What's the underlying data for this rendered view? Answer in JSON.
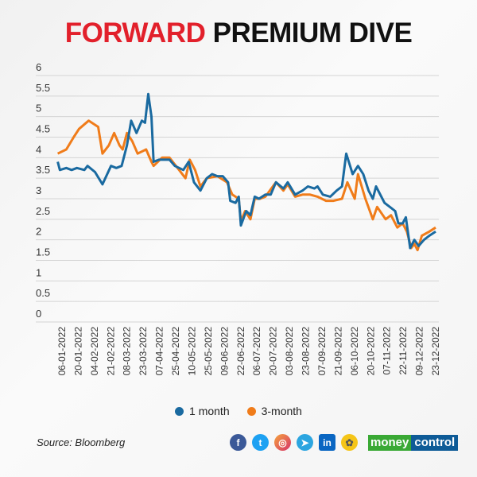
{
  "title": {
    "part1": "FORWARD",
    "part2": "PREMIUM DIVE"
  },
  "legend": [
    "1 month",
    "3-month"
  ],
  "source": "Source: Bloomberg",
  "logo": {
    "part1": "money",
    "part2": "control"
  },
  "social_icons": [
    "facebook-icon",
    "twitter-icon",
    "instagram-icon",
    "telegram-icon",
    "linkedin-icon",
    "koo-icon"
  ],
  "colors": {
    "title_red": "#e2202b",
    "one_month": "#1a6aa0",
    "three_month": "#f07c1a"
  },
  "chart_data": {
    "type": "line",
    "title": "FORWARD PREMIUM DIVE",
    "xlabel": "",
    "ylabel": "",
    "ylim": [
      0,
      6
    ],
    "yticks": [
      "0",
      "0.5",
      "1",
      "1.5",
      "2",
      "2.5",
      "3",
      "3.5",
      "4",
      "4.5",
      "5",
      "5.5",
      "6"
    ],
    "x_unit": "day of year 2022",
    "xticks": [
      "06-01-2022",
      "20-01-2022",
      "04-02-2022",
      "21-02-2022",
      "08-03-2022",
      "23-03-2022",
      "07-04-2022",
      "25-04-2022",
      "10-05-2022",
      "25-05-2022",
      "09-06-2022",
      "22-06-2022",
      "06-07-2022",
      "20-07-2022",
      "03-08-2022",
      "23-08-2022",
      "07-09-2022",
      "21-09-2022",
      "06-10-2022",
      "20-10-2022",
      "07-11-2022",
      "22-11-2022",
      "09-12-2022",
      "23-12-2022"
    ],
    "xlim": [
      6,
      357
    ],
    "grid": true,
    "legend_position": "bottom",
    "series": [
      {
        "name": "1 month",
        "points": [
          [
            2,
            3.9
          ],
          [
            4,
            3.7
          ],
          [
            10,
            3.75
          ],
          [
            15,
            3.7
          ],
          [
            20,
            3.75
          ],
          [
            27,
            3.7
          ],
          [
            30,
            3.8
          ],
          [
            37,
            3.65
          ],
          [
            44,
            3.35
          ],
          [
            52,
            3.8
          ],
          [
            57,
            3.75
          ],
          [
            62,
            3.8
          ],
          [
            67,
            4.3
          ],
          [
            71,
            4.9
          ],
          [
            76,
            4.6
          ],
          [
            81,
            4.9
          ],
          [
            84,
            4.85
          ],
          [
            87,
            5.55
          ],
          [
            90,
            5.0
          ],
          [
            92,
            3.9
          ],
          [
            97,
            3.95
          ],
          [
            102,
            3.95
          ],
          [
            107,
            3.95
          ],
          [
            112,
            3.8
          ],
          [
            120,
            3.7
          ],
          [
            125,
            3.9
          ],
          [
            130,
            3.4
          ],
          [
            136,
            3.2
          ],
          [
            142,
            3.5
          ],
          [
            147,
            3.6
          ],
          [
            152,
            3.55
          ],
          [
            157,
            3.55
          ],
          [
            162,
            3.4
          ],
          [
            164,
            2.95
          ],
          [
            169,
            2.9
          ],
          [
            172,
            3.05
          ],
          [
            174,
            2.35
          ],
          [
            179,
            2.7
          ],
          [
            183,
            2.6
          ],
          [
            187,
            3.05
          ],
          [
            191,
            3.0
          ],
          [
            197,
            3.1
          ],
          [
            202,
            3.1
          ],
          [
            207,
            3.4
          ],
          [
            214,
            3.25
          ],
          [
            218,
            3.4
          ],
          [
            225,
            3.1
          ],
          [
            232,
            3.2
          ],
          [
            237,
            3.3
          ],
          [
            243,
            3.25
          ],
          [
            246,
            3.3
          ],
          [
            251,
            3.1
          ],
          [
            258,
            3.05
          ],
          [
            264,
            3.2
          ],
          [
            269,
            3.3
          ],
          [
            273,
            4.1
          ],
          [
            279,
            3.6
          ],
          [
            284,
            3.8
          ],
          [
            289,
            3.6
          ],
          [
            294,
            3.2
          ],
          [
            298,
            3.0
          ],
          [
            301,
            3.3
          ],
          [
            309,
            2.9
          ],
          [
            314,
            2.8
          ],
          [
            319,
            2.7
          ],
          [
            322,
            2.4
          ],
          [
            326,
            2.4
          ],
          [
            329,
            2.55
          ],
          [
            333,
            1.8
          ],
          [
            337,
            2.0
          ],
          [
            341,
            1.85
          ],
          [
            346,
            2.0
          ],
          [
            351,
            2.1
          ],
          [
            357,
            2.2
          ]
        ]
      },
      {
        "name": "3-month",
        "points": [
          [
            2,
            4.1
          ],
          [
            10,
            4.2
          ],
          [
            17,
            4.5
          ],
          [
            22,
            4.7
          ],
          [
            31,
            4.9
          ],
          [
            40,
            4.75
          ],
          [
            44,
            4.1
          ],
          [
            50,
            4.3
          ],
          [
            55,
            4.6
          ],
          [
            60,
            4.3
          ],
          [
            63,
            4.2
          ],
          [
            67,
            4.6
          ],
          [
            72,
            4.4
          ],
          [
            77,
            4.1
          ],
          [
            85,
            4.2
          ],
          [
            90,
            3.9
          ],
          [
            92,
            3.8
          ],
          [
            100,
            4.0
          ],
          [
            107,
            4.0
          ],
          [
            116,
            3.7
          ],
          [
            122,
            3.5
          ],
          [
            126,
            3.95
          ],
          [
            131,
            3.7
          ],
          [
            136,
            3.3
          ],
          [
            142,
            3.5
          ],
          [
            152,
            3.55
          ],
          [
            161,
            3.4
          ],
          [
            166,
            3.1
          ],
          [
            172,
            3.0
          ],
          [
            174,
            2.45
          ],
          [
            178,
            2.7
          ],
          [
            183,
            2.5
          ],
          [
            187,
            3.0
          ],
          [
            192,
            3.0
          ],
          [
            197,
            3.05
          ],
          [
            207,
            3.4
          ],
          [
            214,
            3.2
          ],
          [
            218,
            3.35
          ],
          [
            225,
            3.05
          ],
          [
            232,
            3.1
          ],
          [
            239,
            3.1
          ],
          [
            246,
            3.05
          ],
          [
            254,
            2.95
          ],
          [
            261,
            2.95
          ],
          [
            269,
            3.0
          ],
          [
            274,
            3.4
          ],
          [
            281,
            3.0
          ],
          [
            284,
            3.6
          ],
          [
            291,
            3.0
          ],
          [
            298,
            2.5
          ],
          [
            302,
            2.8
          ],
          [
            310,
            2.5
          ],
          [
            315,
            2.6
          ],
          [
            321,
            2.3
          ],
          [
            326,
            2.4
          ],
          [
            330,
            2.2
          ],
          [
            334,
            1.8
          ],
          [
            337,
            1.9
          ],
          [
            340,
            1.75
          ],
          [
            344,
            2.1
          ],
          [
            351,
            2.2
          ],
          [
            357,
            2.3
          ]
        ]
      }
    ]
  }
}
